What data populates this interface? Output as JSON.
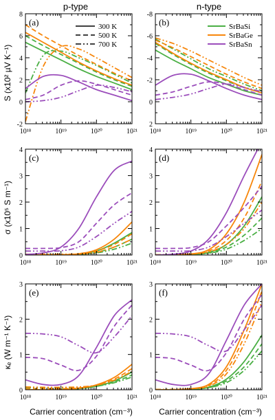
{
  "figure": {
    "col_titles": [
      "p-type",
      "n-type"
    ],
    "xlabel": "Carrier concentration (cm⁻³)",
    "legend_temperature": [
      "300 K",
      "500 K",
      "700 K"
    ],
    "legend_compounds": [
      "SrBaSi",
      "SrBaGe",
      "SrBaSn"
    ],
    "colors": {
      "SrBaSi": "#4aaf44",
      "SrBaGe": "#f7860a",
      "SrBaSn": "#9b4dbb"
    }
  },
  "chart_data": [
    {
      "type": "line",
      "panel": "(a)",
      "column": "p-type",
      "ylabel": "S (x10² µV K⁻¹)",
      "xscale": "log",
      "xlim": [
        1e+18,
        1e+21
      ],
      "ylim": [
        -2,
        8
      ],
      "xticks": [
        "10¹⁸",
        "10¹⁹",
        "10²⁰",
        "10²¹"
      ],
      "yticks": [
        "-2",
        "0",
        "2",
        "4",
        "6",
        "8"
      ],
      "x_log10": [
        18,
        18.5,
        19,
        19.5,
        20,
        20.5,
        21
      ],
      "series": [
        {
          "compound": "SrBaSi",
          "temp": "300 K",
          "values": [
            5.4,
            4.6,
            3.8,
            3.0,
            2.3,
            1.7,
            1.1
          ]
        },
        {
          "compound": "SrBaSi",
          "temp": "500 K",
          "values": [
            6.0,
            5.1,
            4.3,
            3.5,
            2.7,
            2.0,
            1.4
          ]
        },
        {
          "compound": "SrBaSi",
          "temp": "700 K",
          "values": [
            0.8,
            4.2,
            4.6,
            4.0,
            3.3,
            2.5,
            1.7
          ]
        },
        {
          "compound": "SrBaGe",
          "temp": "300 K",
          "values": [
            6.3,
            5.4,
            4.5,
            3.6,
            2.8,
            2.1,
            1.5
          ]
        },
        {
          "compound": "SrBaGe",
          "temp": "500 K",
          "values": [
            7.0,
            6.0,
            5.1,
            4.2,
            3.4,
            2.6,
            1.9
          ]
        },
        {
          "compound": "SrBaGe",
          "temp": "700 K",
          "values": [
            -1.8,
            3.2,
            5.0,
            4.8,
            4.0,
            3.1,
            2.2
          ]
        },
        {
          "compound": "SrBaSn",
          "temp": "300 K",
          "values": [
            1.2,
            2.3,
            2.4,
            1.8,
            1.1,
            0.6,
            0.1
          ]
        },
        {
          "compound": "SrBaSn",
          "temp": "500 K",
          "values": [
            0.2,
            0.6,
            1.5,
            1.9,
            1.6,
            1.1,
            0.6
          ]
        },
        {
          "compound": "SrBaSn",
          "temp": "700 K",
          "values": [
            0.0,
            0.1,
            0.4,
            1.0,
            1.5,
            1.3,
            0.9
          ]
        }
      ]
    },
    {
      "type": "line",
      "panel": "(b)",
      "column": "n-type",
      "ylabel": "",
      "xscale": "log",
      "xlim": [
        1e+18,
        1e+21
      ],
      "ylim": [
        2,
        -8
      ],
      "xticks": [
        "10¹⁸",
        "10¹⁹",
        "10²⁰",
        "10²¹"
      ],
      "yticks": [
        "2",
        "0",
        "-2",
        "-4",
        "-6",
        "-8"
      ],
      "x_log10": [
        18,
        18.5,
        19,
        19.5,
        20,
        20.5,
        21
      ],
      "series": [
        {
          "compound": "SrBaSi",
          "temp": "300 K",
          "values": [
            -4.7,
            -3.8,
            -3.0,
            -2.2,
            -1.6,
            -1.0,
            -0.6
          ]
        },
        {
          "compound": "SrBaSi",
          "temp": "500 K",
          "values": [
            -5.3,
            -4.3,
            -3.4,
            -2.6,
            -1.9,
            -1.3,
            -0.8
          ]
        },
        {
          "compound": "SrBaSi",
          "temp": "700 K",
          "values": [
            -5.7,
            -4.8,
            -3.9,
            -3.0,
            -2.3,
            -1.6,
            -1.0
          ]
        },
        {
          "compound": "SrBaGe",
          "temp": "300 K",
          "values": [
            -5.4,
            -4.4,
            -3.5,
            -2.7,
            -2.0,
            -1.3,
            -0.8
          ]
        },
        {
          "compound": "SrBaGe",
          "temp": "500 K",
          "values": [
            -5.6,
            -4.9,
            -4.1,
            -3.3,
            -2.5,
            -1.8,
            -1.2
          ]
        },
        {
          "compound": "SrBaGe",
          "temp": "700 K",
          "values": [
            -5.8,
            -5.3,
            -4.6,
            -3.8,
            -3.0,
            -2.2,
            -1.5
          ]
        },
        {
          "compound": "SrBaSn",
          "temp": "300 K",
          "values": [
            -1.5,
            -2.4,
            -2.5,
            -1.9,
            -1.2,
            -0.6,
            -0.2
          ]
        },
        {
          "compound": "SrBaSn",
          "temp": "500 K",
          "values": [
            -0.6,
            -0.9,
            -1.4,
            -1.8,
            -1.6,
            -1.1,
            -0.6
          ]
        },
        {
          "compound": "SrBaSn",
          "temp": "700 K",
          "values": [
            -0.2,
            -0.4,
            -0.7,
            -1.2,
            -1.6,
            -1.3,
            -0.9
          ]
        }
      ]
    },
    {
      "type": "line",
      "panel": "(c)",
      "column": "p-type",
      "ylabel": "σ (x10⁵ S m⁻¹)",
      "xscale": "log",
      "xlim": [
        1e+18,
        1e+21
      ],
      "ylim": [
        0,
        4
      ],
      "xticks": [
        "10¹⁸",
        "10¹⁹",
        "10²⁰",
        "10²¹"
      ],
      "yticks": [
        "0",
        "1",
        "2",
        "3",
        "4"
      ],
      "x_log10": [
        18,
        18.5,
        19,
        19.5,
        20,
        20.5,
        21
      ],
      "series": [
        {
          "compound": "SrBaSi",
          "temp": "300 K",
          "values": [
            0.0,
            0.0,
            0.01,
            0.04,
            0.15,
            0.45,
            0.85
          ]
        },
        {
          "compound": "SrBaSi",
          "temp": "500 K",
          "values": [
            0.0,
            0.0,
            0.01,
            0.03,
            0.1,
            0.3,
            0.6
          ]
        },
        {
          "compound": "SrBaSi",
          "temp": "700 K",
          "values": [
            0.02,
            0.02,
            0.02,
            0.03,
            0.08,
            0.22,
            0.45
          ]
        },
        {
          "compound": "SrBaGe",
          "temp": "300 K",
          "values": [
            0.0,
            0.0,
            0.01,
            0.05,
            0.2,
            0.6,
            1.25
          ]
        },
        {
          "compound": "SrBaGe",
          "temp": "500 K",
          "values": [
            0.0,
            0.0,
            0.01,
            0.04,
            0.15,
            0.4,
            0.8
          ]
        },
        {
          "compound": "SrBaGe",
          "temp": "700 K",
          "values": [
            0.03,
            0.03,
            0.03,
            0.04,
            0.1,
            0.3,
            0.6
          ]
        },
        {
          "compound": "SrBaSn",
          "temp": "300 K",
          "values": [
            0.02,
            0.08,
            0.3,
            1.0,
            2.2,
            3.2,
            3.55
          ]
        },
        {
          "compound": "SrBaSn",
          "temp": "500 K",
          "values": [
            0.25,
            0.25,
            0.28,
            0.5,
            1.2,
            1.9,
            2.35
          ]
        },
        {
          "compound": "SrBaSn",
          "temp": "700 K",
          "values": [
            0.15,
            0.15,
            0.16,
            0.3,
            0.7,
            1.2,
            1.65
          ]
        }
      ]
    },
    {
      "type": "line",
      "panel": "(d)",
      "column": "n-type",
      "ylabel": "",
      "xscale": "log",
      "xlim": [
        1e+18,
        1e+21
      ],
      "ylim": [
        0,
        4
      ],
      "xticks": [
        "10¹⁸",
        "10¹⁹",
        "10²⁰",
        "10²¹"
      ],
      "yticks": [
        "0",
        "1",
        "2",
        "3",
        "4"
      ],
      "x_log10": [
        18,
        18.5,
        19,
        19.5,
        20,
        20.5,
        21
      ],
      "series": [
        {
          "compound": "SrBaSi",
          "temp": "300 K",
          "values": [
            0.0,
            0.0,
            0.02,
            0.1,
            0.4,
            1.1,
            2.2
          ]
        },
        {
          "compound": "SrBaSi",
          "temp": "500 K",
          "values": [
            0.0,
            0.01,
            0.02,
            0.08,
            0.3,
            0.75,
            1.4
          ]
        },
        {
          "compound": "SrBaSi",
          "temp": "700 K",
          "values": [
            0.01,
            0.02,
            0.03,
            0.07,
            0.22,
            0.55,
            1.0
          ]
        },
        {
          "compound": "SrBaGe",
          "temp": "300 K",
          "values": [
            0.0,
            0.01,
            0.04,
            0.2,
            0.8,
            2.0,
            3.8
          ]
        },
        {
          "compound": "SrBaGe",
          "temp": "500 K",
          "values": [
            0.0,
            0.01,
            0.03,
            0.15,
            0.55,
            1.4,
            2.8
          ]
        },
        {
          "compound": "SrBaGe",
          "temp": "700 K",
          "values": [
            0.01,
            0.02,
            0.04,
            0.12,
            0.4,
            1.0,
            2.0
          ]
        },
        {
          "compound": "SrBaSn",
          "temp": "300 K",
          "values": [
            0.0,
            0.03,
            0.15,
            0.6,
            1.6,
            3.0,
            4.3
          ]
        },
        {
          "compound": "SrBaSn",
          "temp": "500 K",
          "values": [
            0.25,
            0.25,
            0.28,
            0.5,
            1.1,
            1.8,
            2.6
          ]
        },
        {
          "compound": "SrBaSn",
          "temp": "700 K",
          "values": [
            0.15,
            0.15,
            0.16,
            0.3,
            0.7,
            1.2,
            1.7
          ]
        }
      ]
    },
    {
      "type": "line",
      "panel": "(e)",
      "column": "p-type",
      "ylabel": "κₑ (W m⁻¹ K⁻¹)",
      "xscale": "log",
      "xlim": [
        1e+18,
        1e+21
      ],
      "ylim": [
        0,
        3
      ],
      "xticks": [
        "10¹⁸",
        "10¹⁹",
        "10²⁰",
        "10²¹"
      ],
      "yticks": [
        "0",
        "1",
        "2",
        "3"
      ],
      "x_log10": [
        18,
        18.5,
        19,
        19.5,
        20,
        20.5,
        21
      ],
      "series": [
        {
          "compound": "SrBaSi",
          "temp": "300 K",
          "values": [
            0.0,
            0.0,
            0.01,
            0.03,
            0.1,
            0.25,
            0.5
          ]
        },
        {
          "compound": "SrBaSi",
          "temp": "500 K",
          "values": [
            0.02,
            0.02,
            0.02,
            0.04,
            0.1,
            0.22,
            0.42
          ]
        },
        {
          "compound": "SrBaSi",
          "temp": "700 K",
          "values": [
            0.06,
            0.05,
            0.05,
            0.06,
            0.1,
            0.2,
            0.36
          ]
        },
        {
          "compound": "SrBaGe",
          "temp": "300 K",
          "values": [
            0.0,
            0.0,
            0.01,
            0.04,
            0.14,
            0.35,
            0.72
          ]
        },
        {
          "compound": "SrBaGe",
          "temp": "500 K",
          "values": [
            0.03,
            0.03,
            0.03,
            0.05,
            0.13,
            0.3,
            0.6
          ]
        },
        {
          "compound": "SrBaGe",
          "temp": "700 K",
          "values": [
            0.08,
            0.07,
            0.07,
            0.08,
            0.13,
            0.27,
            0.52
          ]
        },
        {
          "compound": "SrBaSn",
          "temp": "300 K",
          "values": [
            0.28,
            0.15,
            0.15,
            0.4,
            1.2,
            2.1,
            2.55
          ]
        },
        {
          "compound": "SrBaSn",
          "temp": "500 K",
          "values": [
            0.92,
            0.88,
            0.7,
            0.55,
            0.95,
            1.8,
            2.4
          ]
        },
        {
          "compound": "SrBaSn",
          "temp": "700 K",
          "values": [
            1.6,
            1.58,
            1.5,
            1.25,
            1.05,
            1.5,
            2.1
          ]
        }
      ]
    },
    {
      "type": "line",
      "panel": "(f)",
      "column": "n-type",
      "ylabel": "",
      "xscale": "log",
      "xlim": [
        1e+18,
        1e+21
      ],
      "ylim": [
        0,
        3
      ],
      "xticks": [
        "10¹⁸",
        "10¹⁹",
        "10²⁰",
        "10²¹"
      ],
      "yticks": [
        "0",
        "1",
        "2",
        "3"
      ],
      "x_log10": [
        18,
        18.5,
        19,
        19.5,
        20,
        20.5,
        21
      ],
      "series": [
        {
          "compound": "SrBaSi",
          "temp": "300 K",
          "values": [
            0.0,
            0.0,
            0.01,
            0.07,
            0.3,
            0.8,
            1.55
          ]
        },
        {
          "compound": "SrBaSi",
          "temp": "500 K",
          "values": [
            0.0,
            0.0,
            0.02,
            0.06,
            0.25,
            0.65,
            1.3
          ]
        },
        {
          "compound": "SrBaSi",
          "temp": "700 K",
          "values": [
            0.01,
            0.01,
            0.02,
            0.06,
            0.2,
            0.55,
            1.1
          ]
        },
        {
          "compound": "SrBaGe",
          "temp": "300 K",
          "values": [
            0.0,
            0.0,
            0.03,
            0.15,
            0.65,
            1.7,
            3.0
          ]
        },
        {
          "compound": "SrBaGe",
          "temp": "500 K",
          "values": [
            0.0,
            0.0,
            0.03,
            0.12,
            0.55,
            1.5,
            2.8
          ]
        },
        {
          "compound": "SrBaGe",
          "temp": "700 K",
          "values": [
            0.01,
            0.01,
            0.03,
            0.1,
            0.45,
            1.3,
            2.5
          ]
        },
        {
          "compound": "SrBaSn",
          "temp": "300 K",
          "values": [
            0.28,
            0.15,
            0.15,
            0.45,
            1.4,
            2.4,
            3.0
          ]
        },
        {
          "compound": "SrBaSn",
          "temp": "500 K",
          "values": [
            0.92,
            0.88,
            0.7,
            0.55,
            1.05,
            2.0,
            2.7
          ]
        },
        {
          "compound": "SrBaSn",
          "temp": "700 K",
          "values": [
            1.6,
            1.58,
            1.5,
            1.25,
            1.1,
            1.7,
            2.4
          ]
        }
      ]
    }
  ]
}
